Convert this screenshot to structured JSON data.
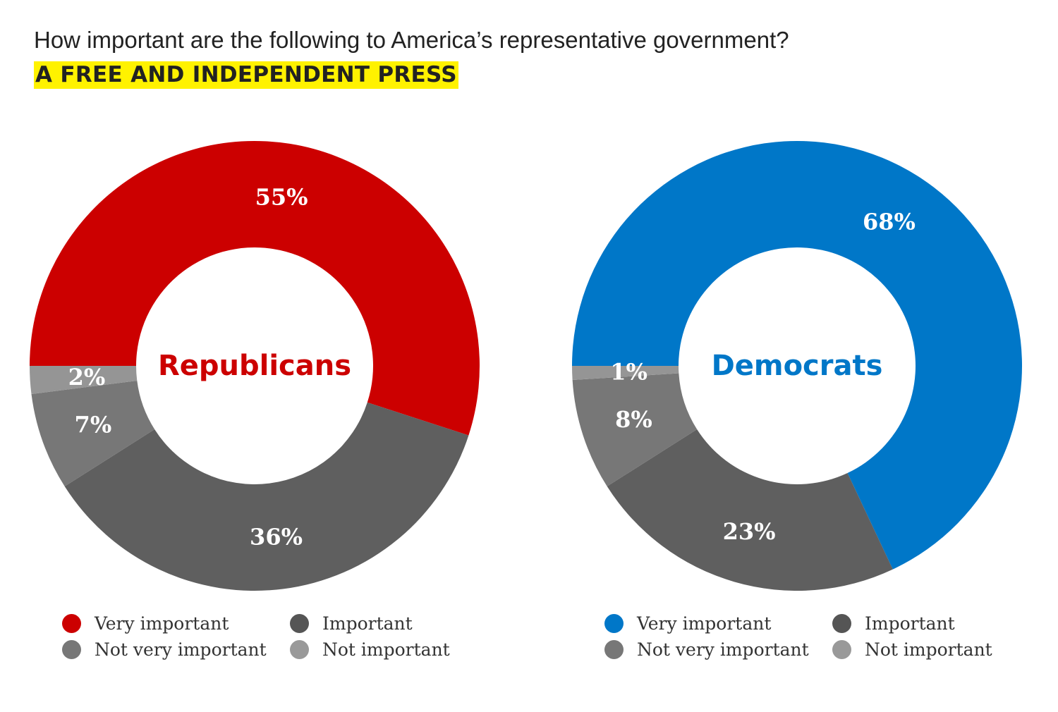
{
  "question": "How important are the following to America’s representative government?",
  "topic": "A FREE AND INDEPENDENT PRESS",
  "chart_data": [
    {
      "type": "pie",
      "variant": "donut",
      "title": "Republicans",
      "title_color": "#cc0000",
      "categories": [
        "Very important",
        "Important",
        "Not very important",
        "Not important"
      ],
      "values": [
        55,
        36,
        7,
        2
      ],
      "labels": [
        "55%",
        "36%",
        "7%",
        "2%"
      ],
      "colors": [
        "#cc0000",
        "#5f5f5f",
        "#777777",
        "#959595"
      ],
      "legend_colors": [
        "#cc0000",
        "#555555",
        "#777777",
        "#999999"
      ],
      "legend": "bottom"
    },
    {
      "type": "pie",
      "variant": "donut",
      "title": "Democrats",
      "title_color": "#0077c8",
      "categories": [
        "Very important",
        "Important",
        "Not very important",
        "Not important"
      ],
      "values": [
        68,
        23,
        8,
        1
      ],
      "labels": [
        "68%",
        "23%",
        "8%",
        "1%"
      ],
      "colors": [
        "#0077c8",
        "#5f5f5f",
        "#777777",
        "#959595"
      ],
      "legend_colors": [
        "#0077c8",
        "#555555",
        "#777777",
        "#999999"
      ],
      "legend": "bottom"
    }
  ]
}
